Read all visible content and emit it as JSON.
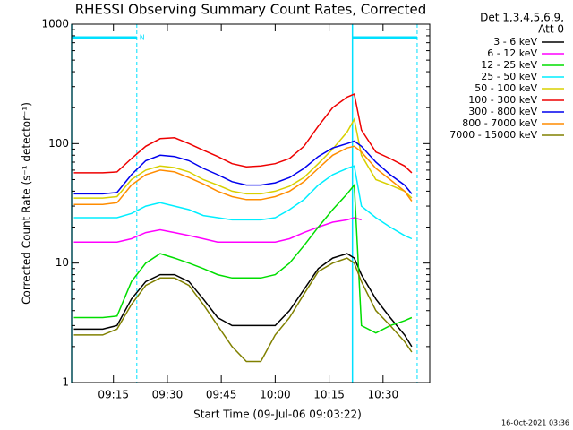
{
  "chart_data": {
    "type": "line",
    "title": "RHESSI Observing Summary Count Rates, Corrected",
    "xlabel": "Start Time (09-Jul-06 09:03:22)",
    "ylabel": "Corrected Count Rate (s⁻¹ detector⁻¹)",
    "legend_title": [
      "Det 1,3,4,5,6,9,",
      "Att 0"
    ],
    "footer": "16-Oct-2021 03:36",
    "log_y": true,
    "xlim": [
      "09:03:22",
      "10:43:00"
    ],
    "xticks": [
      "09:15",
      "09:30",
      "09:45",
      "10:00",
      "10:15",
      "10:30"
    ],
    "ylim": [
      1,
      1000
    ],
    "yticks": [
      1,
      10,
      100,
      1000
    ],
    "intervals": [
      {
        "start": "09:03:22",
        "end": "09:21:30",
        "label": "N",
        "color": "#00e0ff"
      },
      {
        "start": "10:21:30",
        "end": "10:39:30",
        "color": "#00e0ff"
      }
    ],
    "x": [
      "09:04",
      "09:08",
      "09:12",
      "09:16",
      "09:20",
      "09:24",
      "09:28",
      "09:32",
      "09:36",
      "09:40",
      "09:44",
      "09:48",
      "09:52",
      "09:56",
      "10:00",
      "10:04",
      "10:08",
      "10:12",
      "10:16",
      "10:20",
      "10:22",
      "10:24",
      "10:28",
      "10:32",
      "10:36",
      "10:38"
    ],
    "series": [
      {
        "name": "3 - 6 keV",
        "color": "#000000",
        "values": [
          2.8,
          2.8,
          2.8,
          3,
          5,
          7,
          8,
          8,
          7,
          5,
          3.5,
          3,
          3,
          3,
          3,
          4,
          6,
          9,
          11,
          12,
          11,
          8,
          5,
          3.5,
          2.5,
          2
        ]
      },
      {
        "name": "6 - 12 keV",
        "color": "#ff00ff",
        "values": [
          15,
          15,
          15,
          15,
          16,
          18,
          19,
          18,
          17,
          16,
          15,
          15,
          15,
          15,
          15,
          16,
          18,
          20,
          22,
          23,
          24,
          23,
          null,
          null,
          null,
          null
        ]
      },
      {
        "name": "12 - 25 keV",
        "color": "#00dd00",
        "values": [
          3.5,
          3.5,
          3.5,
          3.6,
          7,
          10,
          12,
          11,
          10,
          9,
          8,
          7.5,
          7.5,
          7.5,
          8,
          10,
          14,
          20,
          28,
          38,
          45,
          3,
          2.6,
          3,
          3.3,
          3.5
        ]
      },
      {
        "name": "25 - 50 keV",
        "color": "#00eeff",
        "values": [
          24,
          24,
          24,
          24,
          26,
          30,
          32,
          30,
          28,
          25,
          24,
          23,
          23,
          23,
          24,
          28,
          34,
          45,
          55,
          62,
          65,
          30,
          24,
          20,
          17,
          16
        ]
      },
      {
        "name": "50 - 100 keV",
        "color": "#d8d000",
        "values": [
          35,
          35,
          35,
          36,
          50,
          60,
          65,
          63,
          58,
          50,
          45,
          40,
          38,
          38,
          40,
          44,
          52,
          68,
          90,
          125,
          160,
          80,
          50,
          45,
          40,
          35
        ]
      },
      {
        "name": "100 - 300 keV",
        "color": "#ee0000",
        "values": [
          57,
          57,
          57,
          58,
          75,
          95,
          110,
          112,
          100,
          88,
          78,
          68,
          64,
          65,
          68,
          75,
          95,
          140,
          200,
          245,
          260,
          130,
          85,
          75,
          65,
          57
        ]
      },
      {
        "name": "300 - 800 keV",
        "color": "#0000ee",
        "values": [
          38,
          38,
          38,
          39,
          55,
          72,
          80,
          78,
          72,
          62,
          55,
          48,
          45,
          45,
          47,
          52,
          62,
          78,
          92,
          100,
          105,
          95,
          70,
          55,
          45,
          38
        ]
      },
      {
        "name": "800 - 7000 keV",
        "color": "#ff8c00",
        "values": [
          31,
          31,
          31,
          32,
          45,
          55,
          60,
          58,
          52,
          46,
          40,
          36,
          34,
          34,
          36,
          40,
          48,
          62,
          80,
          92,
          95,
          85,
          62,
          50,
          40,
          33
        ]
      },
      {
        "name": "7000 - 15000 keV",
        "color": "#808000",
        "values": [
          2.5,
          2.5,
          2.5,
          2.8,
          4.5,
          6.5,
          7.5,
          7.5,
          6.5,
          4.5,
          3,
          2,
          1.5,
          1.5,
          2.5,
          3.5,
          5.5,
          8.5,
          10,
          11,
          10,
          7,
          4,
          3,
          2.2,
          1.8
        ]
      }
    ]
  }
}
